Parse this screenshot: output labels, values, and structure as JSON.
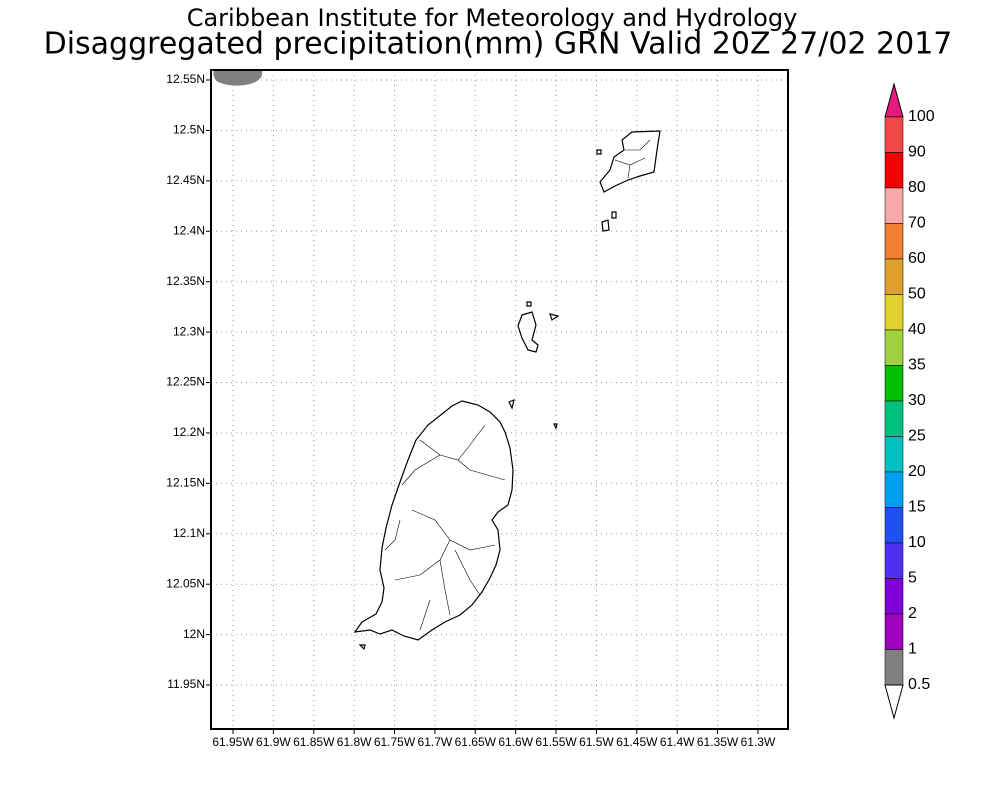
{
  "header": {
    "title": "Caribbean Institute for Meteorology and Hydrology",
    "subtitle": "Disaggregated precipitation(mm) GRN Valid 20Z 27/02 2017"
  },
  "map": {
    "lat_labels": [
      "12.55N",
      "12.5N",
      "12.45N",
      "12.4N",
      "12.35N",
      "12.3N",
      "12.25N",
      "12.2N",
      "12.15N",
      "12.1N",
      "12.05N",
      "12N",
      "11.95N"
    ],
    "lon_labels": [
      "61.95W",
      "61.9W",
      "61.85W",
      "61.8W",
      "61.75W",
      "61.7W",
      "61.65W",
      "61.6W",
      "61.55W",
      "61.5W",
      "61.45W",
      "61.4W",
      "61.35W",
      "61.3W"
    ]
  },
  "colorbar": {
    "labels": [
      "100",
      "90",
      "80",
      "70",
      "60",
      "50",
      "40",
      "35",
      "30",
      "25",
      "20",
      "15",
      "10",
      "5",
      "2",
      "1",
      "0.5"
    ],
    "top_color": "#e8197d",
    "colors": [
      "#f04848",
      "#f00000",
      "#f8a8a8",
      "#f08030",
      "#e0a030",
      "#e0d030",
      "#a0d040",
      "#00c000",
      "#00c080",
      "#00c0c0",
      "#00a0f0",
      "#2050f0",
      "#5030f0",
      "#8000d8",
      "#a000c0",
      "#808080"
    ],
    "bottom_color": "#ffffff"
  }
}
